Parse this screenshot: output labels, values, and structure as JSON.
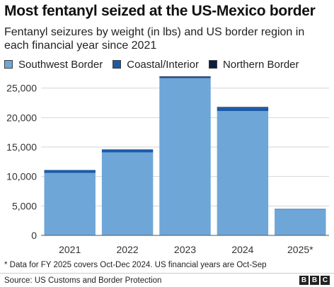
{
  "title": "Most fentanyl seized at the US-Mexico border",
  "subtitle": "Fentanyl seizures by weight (in lbs) and US border region in each financial year since 2021",
  "footnote": "* Data for FY 2025 covers Oct-Dec 2024. US financial years are Oct-Sep",
  "source": "Source: US Customs and Border Protection",
  "logo_letters": [
    "B",
    "B",
    "C"
  ],
  "colors": {
    "southwest": "#6fa6d8",
    "coastal": "#1b5aa8",
    "northern": "#0b1f3f"
  },
  "chart_data": {
    "type": "bar",
    "stacked": true,
    "categories": [
      "2021",
      "2022",
      "2023",
      "2024",
      "2025*"
    ],
    "series": [
      {
        "name": "Southwest Border",
        "values": [
          10600,
          14100,
          26700,
          21100,
          4400
        ]
      },
      {
        "name": "Coastal/Interior",
        "values": [
          500,
          500,
          200,
          600,
          100
        ]
      },
      {
        "name": "Northern Border",
        "values": [
          0,
          0,
          100,
          100,
          0
        ]
      }
    ],
    "ylim": [
      0,
      27000
    ],
    "yticks": [
      0,
      5000,
      10000,
      15000,
      20000,
      25000
    ],
    "ytick_labels": [
      "0",
      "5,000",
      "10,000",
      "15,000",
      "20,000",
      "25,000"
    ],
    "grid": true,
    "legend_position": "top"
  }
}
